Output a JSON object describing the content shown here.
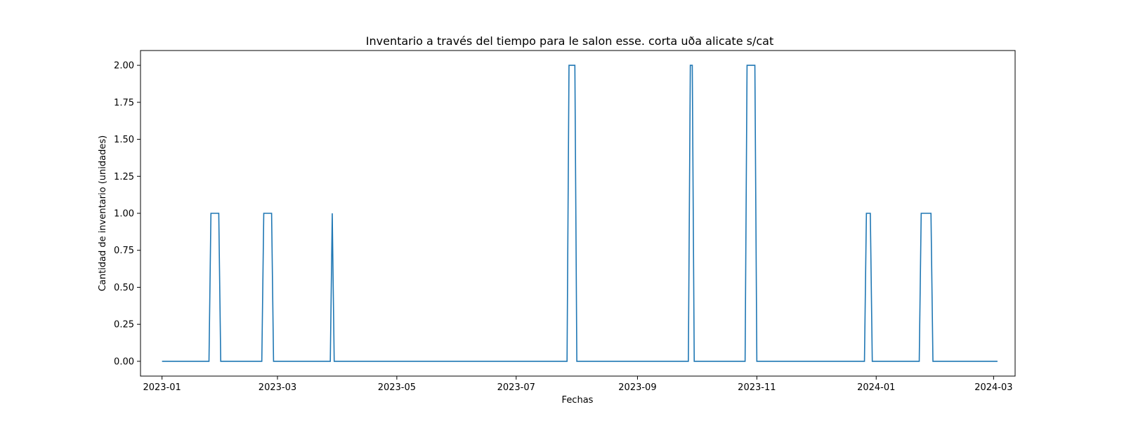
{
  "chart_data": {
    "type": "line",
    "title": "Inventario a través del tiempo para le salon esse. corta uða alicate s/cat",
    "xlabel": "Fechas",
    "ylabel": "Cantidad de inventario (unidades)",
    "xlim": [
      "2022-12-21",
      "2024-03-12"
    ],
    "ylim": [
      -0.1,
      2.1
    ],
    "x_ticks": [
      "2023-01",
      "2023-03",
      "2023-05",
      "2023-07",
      "2023-09",
      "2023-11",
      "2024-01",
      "2024-03"
    ],
    "x_tick_labels": [
      "2023-01",
      "2023-03",
      "2023-05",
      "2023-07",
      "2023-09",
      "2023-11",
      "2024-01",
      "2024-03"
    ],
    "y_ticks": [
      0,
      0.25,
      0.5,
      0.75,
      1.0,
      1.25,
      1.5,
      1.75,
      2.0
    ],
    "y_tick_labels": [
      "0.00",
      "0.25",
      "0.50",
      "0.75",
      "1.00",
      "1.25",
      "1.50",
      "1.75",
      "2.00"
    ],
    "grid": false,
    "line_color": "#1f77b4",
    "series": [
      {
        "x": [
          "2023-01-01",
          "2023-01-25",
          "2023-01-26",
          "2023-01-30",
          "2023-01-31",
          "2023-02-21",
          "2023-02-22",
          "2023-02-26",
          "2023-02-27",
          "2023-03-28",
          "2023-03-29",
          "2023-03-30",
          "2023-07-27",
          "2023-07-28",
          "2023-07-31",
          "2023-08-01",
          "2023-09-27",
          "2023-09-28",
          "2023-09-29",
          "2023-09-30",
          "2023-10-26",
          "2023-10-27",
          "2023-10-31",
          "2023-11-01",
          "2023-12-26",
          "2023-12-27",
          "2023-12-29",
          "2023-12-30",
          "2024-01-23",
          "2024-01-24",
          "2024-01-29",
          "2024-01-30",
          "2024-03-03"
        ],
        "values": [
          0,
          0,
          1,
          1,
          0,
          0,
          1,
          1,
          0,
          0,
          1,
          0,
          0,
          2,
          2,
          0,
          0,
          2,
          2,
          0,
          0,
          2,
          2,
          0,
          0,
          1,
          1,
          0,
          0,
          1,
          1,
          0,
          0
        ]
      }
    ]
  }
}
